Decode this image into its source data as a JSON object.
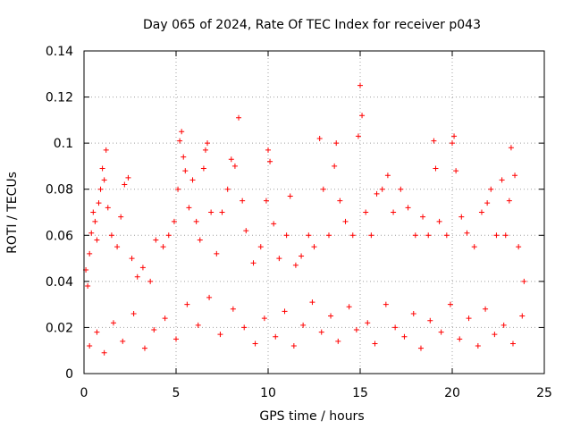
{
  "chart_data": {
    "type": "scatter",
    "title": "Day 065 of 2024, Rate Of TEC Index for receiver p043",
    "xlabel": "GPS time / hours",
    "ylabel": "ROTI / TECUs",
    "xlim": [
      0,
      25
    ],
    "ylim": [
      0,
      0.14
    ],
    "x_ticks": [
      0,
      5,
      10,
      15,
      20,
      25
    ],
    "x_tick_labels": [
      "0",
      "5",
      "10",
      "15",
      "20",
      "25"
    ],
    "y_ticks": [
      0,
      0.02,
      0.04,
      0.06,
      0.08,
      0.1,
      0.12,
      0.14
    ],
    "y_tick_labels": [
      "0",
      "0.02",
      "0.04",
      "0.06",
      "0.08",
      "0.1",
      "0.12",
      "0.14"
    ],
    "grid": true,
    "marker": "+",
    "marker_color": "#ff0000",
    "series": [
      {
        "name": "ROTI",
        "points": [
          [
            0.1,
            0.045
          ],
          [
            0.2,
            0.038
          ],
          [
            0.3,
            0.052
          ],
          [
            0.4,
            0.061
          ],
          [
            0.5,
            0.07
          ],
          [
            0.6,
            0.066
          ],
          [
            0.7,
            0.058
          ],
          [
            0.8,
            0.074
          ],
          [
            0.9,
            0.08
          ],
          [
            1.0,
            0.089
          ],
          [
            1.1,
            0.084
          ],
          [
            1.2,
            0.097
          ],
          [
            1.3,
            0.072
          ],
          [
            1.5,
            0.06
          ],
          [
            1.8,
            0.055
          ],
          [
            2.0,
            0.068
          ],
          [
            2.2,
            0.082
          ],
          [
            2.4,
            0.085
          ],
          [
            2.6,
            0.05
          ],
          [
            2.9,
            0.042
          ],
          [
            3.2,
            0.046
          ],
          [
            3.6,
            0.04
          ],
          [
            3.9,
            0.058
          ],
          [
            4.3,
            0.055
          ],
          [
            4.6,
            0.06
          ],
          [
            4.9,
            0.066
          ],
          [
            5.1,
            0.08
          ],
          [
            5.2,
            0.101
          ],
          [
            5.3,
            0.105
          ],
          [
            5.4,
            0.094
          ],
          [
            5.5,
            0.088
          ],
          [
            5.7,
            0.072
          ],
          [
            5.9,
            0.084
          ],
          [
            6.1,
            0.066
          ],
          [
            6.3,
            0.058
          ],
          [
            6.5,
            0.089
          ],
          [
            6.6,
            0.097
          ],
          [
            6.7,
            0.1
          ],
          [
            6.9,
            0.07
          ],
          [
            7.2,
            0.052
          ],
          [
            7.5,
            0.07
          ],
          [
            7.8,
            0.08
          ],
          [
            8.0,
            0.093
          ],
          [
            8.2,
            0.09
          ],
          [
            8.4,
            0.111
          ],
          [
            8.6,
            0.075
          ],
          [
            8.8,
            0.062
          ],
          [
            9.2,
            0.048
          ],
          [
            9.6,
            0.055
          ],
          [
            9.9,
            0.075
          ],
          [
            10.0,
            0.097
          ],
          [
            10.1,
            0.092
          ],
          [
            10.3,
            0.065
          ],
          [
            10.6,
            0.05
          ],
          [
            11.0,
            0.06
          ],
          [
            11.2,
            0.077
          ],
          [
            11.5,
            0.047
          ],
          [
            11.8,
            0.051
          ],
          [
            12.2,
            0.06
          ],
          [
            12.5,
            0.055
          ],
          [
            12.8,
            0.102
          ],
          [
            13.0,
            0.08
          ],
          [
            13.3,
            0.06
          ],
          [
            13.6,
            0.09
          ],
          [
            13.7,
            0.1
          ],
          [
            13.9,
            0.075
          ],
          [
            14.2,
            0.066
          ],
          [
            14.6,
            0.06
          ],
          [
            14.9,
            0.103
          ],
          [
            15.0,
            0.125
          ],
          [
            15.1,
            0.112
          ],
          [
            15.3,
            0.07
          ],
          [
            15.6,
            0.06
          ],
          [
            15.9,
            0.078
          ],
          [
            16.2,
            0.08
          ],
          [
            16.5,
            0.086
          ],
          [
            16.8,
            0.07
          ],
          [
            17.2,
            0.08
          ],
          [
            17.6,
            0.072
          ],
          [
            18.0,
            0.06
          ],
          [
            18.4,
            0.068
          ],
          [
            18.7,
            0.06
          ],
          [
            19.0,
            0.101
          ],
          [
            19.1,
            0.089
          ],
          [
            19.3,
            0.066
          ],
          [
            19.7,
            0.06
          ],
          [
            20.0,
            0.1
          ],
          [
            20.1,
            0.103
          ],
          [
            20.2,
            0.088
          ],
          [
            20.5,
            0.068
          ],
          [
            20.8,
            0.061
          ],
          [
            21.2,
            0.055
          ],
          [
            21.6,
            0.07
          ],
          [
            21.9,
            0.074
          ],
          [
            22.1,
            0.08
          ],
          [
            22.4,
            0.06
          ],
          [
            22.7,
            0.084
          ],
          [
            22.9,
            0.06
          ],
          [
            23.1,
            0.075
          ],
          [
            23.2,
            0.098
          ],
          [
            23.4,
            0.086
          ],
          [
            23.6,
            0.055
          ],
          [
            23.9,
            0.04
          ],
          [
            0.3,
            0.012
          ],
          [
            0.7,
            0.018
          ],
          [
            1.1,
            0.009
          ],
          [
            1.6,
            0.022
          ],
          [
            2.1,
            0.014
          ],
          [
            2.7,
            0.026
          ],
          [
            3.3,
            0.011
          ],
          [
            3.8,
            0.019
          ],
          [
            4.4,
            0.024
          ],
          [
            5.0,
            0.015
          ],
          [
            5.6,
            0.03
          ],
          [
            6.2,
            0.021
          ],
          [
            6.8,
            0.033
          ],
          [
            7.4,
            0.017
          ],
          [
            8.1,
            0.028
          ],
          [
            8.7,
            0.02
          ],
          [
            9.3,
            0.013
          ],
          [
            9.8,
            0.024
          ],
          [
            10.4,
            0.016
          ],
          [
            10.9,
            0.027
          ],
          [
            11.4,
            0.012
          ],
          [
            11.9,
            0.021
          ],
          [
            12.4,
            0.031
          ],
          [
            12.9,
            0.018
          ],
          [
            13.4,
            0.025
          ],
          [
            13.8,
            0.014
          ],
          [
            14.4,
            0.029
          ],
          [
            14.8,
            0.019
          ],
          [
            15.4,
            0.022
          ],
          [
            15.8,
            0.013
          ],
          [
            16.4,
            0.03
          ],
          [
            16.9,
            0.02
          ],
          [
            17.4,
            0.016
          ],
          [
            17.9,
            0.026
          ],
          [
            18.3,
            0.011
          ],
          [
            18.8,
            0.023
          ],
          [
            19.4,
            0.018
          ],
          [
            19.9,
            0.03
          ],
          [
            20.4,
            0.015
          ],
          [
            20.9,
            0.024
          ],
          [
            21.4,
            0.012
          ],
          [
            21.8,
            0.028
          ],
          [
            22.3,
            0.017
          ],
          [
            22.8,
            0.021
          ],
          [
            23.3,
            0.013
          ],
          [
            23.8,
            0.025
          ]
        ]
      }
    ]
  }
}
